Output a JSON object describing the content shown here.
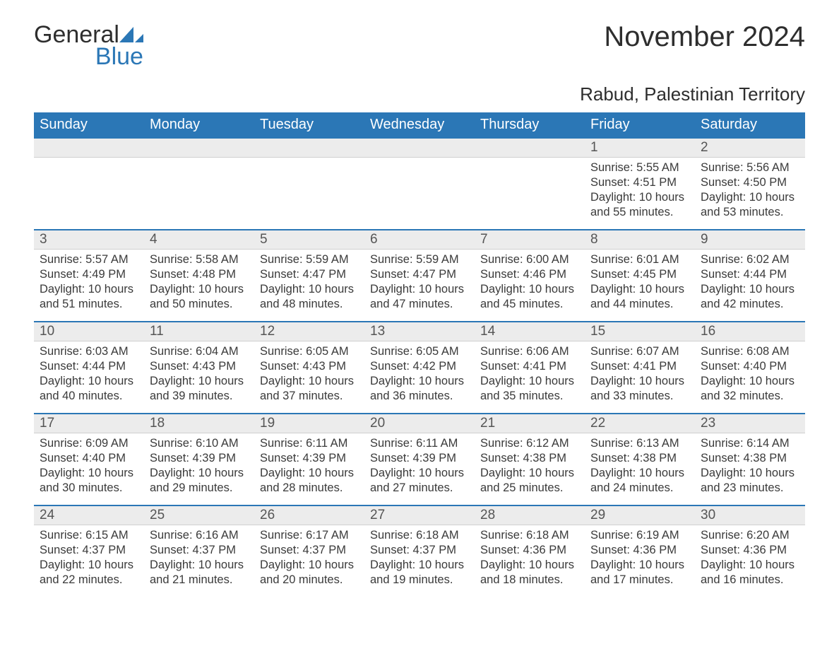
{
  "logo": {
    "word1": "General",
    "word2": "Blue"
  },
  "title": "November 2024",
  "location": "Rabud, Palestinian Territory",
  "colors": {
    "header_bg": "#2b77b6",
    "header_text": "#ffffff",
    "daybar_bg": "#ececec",
    "daybar_border_top": "#2b77b6",
    "body_text": "#3a3a3a",
    "logo_blue": "#2b77b6"
  },
  "weekdays": [
    "Sunday",
    "Monday",
    "Tuesday",
    "Wednesday",
    "Thursday",
    "Friday",
    "Saturday"
  ],
  "weeks": [
    [
      null,
      null,
      null,
      null,
      null,
      {
        "n": "1",
        "sunrise": "5:55 AM",
        "sunset": "4:51 PM",
        "dl1": "10 hours",
        "dl2": "and 55 minutes."
      },
      {
        "n": "2",
        "sunrise": "5:56 AM",
        "sunset": "4:50 PM",
        "dl1": "10 hours",
        "dl2": "and 53 minutes."
      }
    ],
    [
      {
        "n": "3",
        "sunrise": "5:57 AM",
        "sunset": "4:49 PM",
        "dl1": "10 hours",
        "dl2": "and 51 minutes."
      },
      {
        "n": "4",
        "sunrise": "5:58 AM",
        "sunset": "4:48 PM",
        "dl1": "10 hours",
        "dl2": "and 50 minutes."
      },
      {
        "n": "5",
        "sunrise": "5:59 AM",
        "sunset": "4:47 PM",
        "dl1": "10 hours",
        "dl2": "and 48 minutes."
      },
      {
        "n": "6",
        "sunrise": "5:59 AM",
        "sunset": "4:47 PM",
        "dl1": "10 hours",
        "dl2": "and 47 minutes."
      },
      {
        "n": "7",
        "sunrise": "6:00 AM",
        "sunset": "4:46 PM",
        "dl1": "10 hours",
        "dl2": "and 45 minutes."
      },
      {
        "n": "8",
        "sunrise": "6:01 AM",
        "sunset": "4:45 PM",
        "dl1": "10 hours",
        "dl2": "and 44 minutes."
      },
      {
        "n": "9",
        "sunrise": "6:02 AM",
        "sunset": "4:44 PM",
        "dl1": "10 hours",
        "dl2": "and 42 minutes."
      }
    ],
    [
      {
        "n": "10",
        "sunrise": "6:03 AM",
        "sunset": "4:44 PM",
        "dl1": "10 hours",
        "dl2": "and 40 minutes."
      },
      {
        "n": "11",
        "sunrise": "6:04 AM",
        "sunset": "4:43 PM",
        "dl1": "10 hours",
        "dl2": "and 39 minutes."
      },
      {
        "n": "12",
        "sunrise": "6:05 AM",
        "sunset": "4:43 PM",
        "dl1": "10 hours",
        "dl2": "and 37 minutes."
      },
      {
        "n": "13",
        "sunrise": "6:05 AM",
        "sunset": "4:42 PM",
        "dl1": "10 hours",
        "dl2": "and 36 minutes."
      },
      {
        "n": "14",
        "sunrise": "6:06 AM",
        "sunset": "4:41 PM",
        "dl1": "10 hours",
        "dl2": "and 35 minutes."
      },
      {
        "n": "15",
        "sunrise": "6:07 AM",
        "sunset": "4:41 PM",
        "dl1": "10 hours",
        "dl2": "and 33 minutes."
      },
      {
        "n": "16",
        "sunrise": "6:08 AM",
        "sunset": "4:40 PM",
        "dl1": "10 hours",
        "dl2": "and 32 minutes."
      }
    ],
    [
      {
        "n": "17",
        "sunrise": "6:09 AM",
        "sunset": "4:40 PM",
        "dl1": "10 hours",
        "dl2": "and 30 minutes."
      },
      {
        "n": "18",
        "sunrise": "6:10 AM",
        "sunset": "4:39 PM",
        "dl1": "10 hours",
        "dl2": "and 29 minutes."
      },
      {
        "n": "19",
        "sunrise": "6:11 AM",
        "sunset": "4:39 PM",
        "dl1": "10 hours",
        "dl2": "and 28 minutes."
      },
      {
        "n": "20",
        "sunrise": "6:11 AM",
        "sunset": "4:39 PM",
        "dl1": "10 hours",
        "dl2": "and 27 minutes."
      },
      {
        "n": "21",
        "sunrise": "6:12 AM",
        "sunset": "4:38 PM",
        "dl1": "10 hours",
        "dl2": "and 25 minutes."
      },
      {
        "n": "22",
        "sunrise": "6:13 AM",
        "sunset": "4:38 PM",
        "dl1": "10 hours",
        "dl2": "and 24 minutes."
      },
      {
        "n": "23",
        "sunrise": "6:14 AM",
        "sunset": "4:38 PM",
        "dl1": "10 hours",
        "dl2": "and 23 minutes."
      }
    ],
    [
      {
        "n": "24",
        "sunrise": "6:15 AM",
        "sunset": "4:37 PM",
        "dl1": "10 hours",
        "dl2": "and 22 minutes."
      },
      {
        "n": "25",
        "sunrise": "6:16 AM",
        "sunset": "4:37 PM",
        "dl1": "10 hours",
        "dl2": "and 21 minutes."
      },
      {
        "n": "26",
        "sunrise": "6:17 AM",
        "sunset": "4:37 PM",
        "dl1": "10 hours",
        "dl2": "and 20 minutes."
      },
      {
        "n": "27",
        "sunrise": "6:18 AM",
        "sunset": "4:37 PM",
        "dl1": "10 hours",
        "dl2": "and 19 minutes."
      },
      {
        "n": "28",
        "sunrise": "6:18 AM",
        "sunset": "4:36 PM",
        "dl1": "10 hours",
        "dl2": "and 18 minutes."
      },
      {
        "n": "29",
        "sunrise": "6:19 AM",
        "sunset": "4:36 PM",
        "dl1": "10 hours",
        "dl2": "and 17 minutes."
      },
      {
        "n": "30",
        "sunrise": "6:20 AM",
        "sunset": "4:36 PM",
        "dl1": "10 hours",
        "dl2": "and 16 minutes."
      }
    ]
  ],
  "labels": {
    "sunrise": "Sunrise: ",
    "sunset": "Sunset: ",
    "daylight": "Daylight: "
  }
}
